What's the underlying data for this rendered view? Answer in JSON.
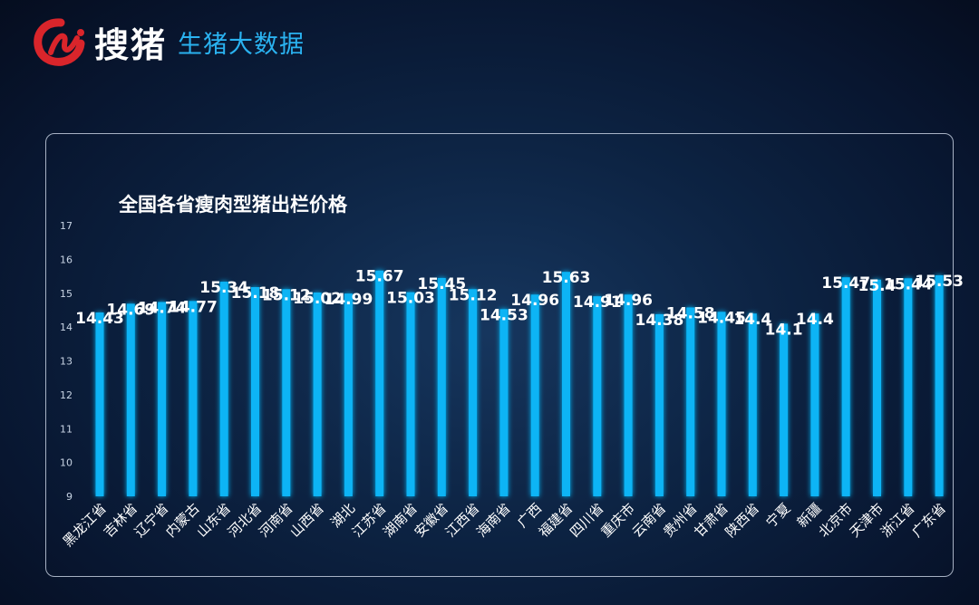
{
  "brand": {
    "name": "搜猪",
    "tagline": "生猪大数据",
    "logo_icon": "pig-logo-icon",
    "accent": "#2ab2f0",
    "logo_color": "#d9252b"
  },
  "chart_data": {
    "type": "bar",
    "title": "全国各省瘦肉型猪出栏价格",
    "xlabel": "",
    "ylabel": "",
    "ylim": [
      9,
      17
    ],
    "yticks": [
      9,
      10,
      11,
      12,
      13,
      14,
      15,
      16,
      17
    ],
    "grid": false,
    "bar_color": "#0ab4f5",
    "categories": [
      "黑龙江省",
      "吉林省",
      "辽宁省",
      "内蒙古",
      "山东省",
      "河北省",
      "河南省",
      "山西省",
      "湖北",
      "江苏省",
      "湖南省",
      "安徽省",
      "江西省",
      "海南省",
      "广西",
      "福建省",
      "四川省",
      "重庆市",
      "云南省",
      "贵州省",
      "甘肃省",
      "陕西省",
      "宁夏",
      "新疆",
      "北京市",
      "天津市",
      "浙江省",
      "广东省"
    ],
    "values": [
      14.43,
      14.69,
      14.74,
      14.77,
      15.34,
      15.18,
      15.12,
      15.02,
      14.99,
      15.67,
      15.03,
      15.45,
      15.12,
      14.53,
      14.96,
      15.63,
      14.91,
      14.96,
      14.38,
      14.58,
      14.45,
      14.4,
      14.1,
      14.4,
      15.47,
      15.4,
      15.44,
      15.53
    ],
    "labels": [
      "14.43",
      "14.69",
      "14.74",
      "14.77",
      "15.34",
      "15.18",
      "15.12",
      "15.02",
      "14.99",
      "15.67",
      "15.03",
      "15.45",
      "15.12",
      "14.53",
      "14.96",
      "15.63",
      "14.91",
      "14.96",
      "14.38",
      "14.58",
      "14.45",
      "14.4",
      "14.1",
      "14.4",
      "15.47",
      "15.4",
      "15.44",
      "15.53"
    ]
  }
}
